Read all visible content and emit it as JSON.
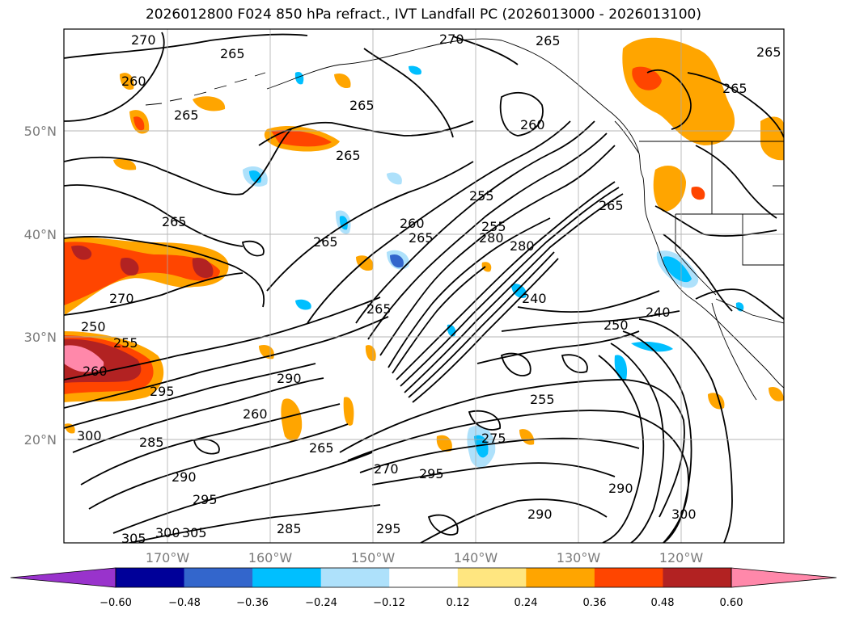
{
  "title": "2026012800 F024 850 hPa refract., IVT Landfall PC (2026013000 - 2026013100)",
  "map": {
    "lon_ticks": [
      "170°W",
      "160°W",
      "150°W",
      "140°W",
      "130°W",
      "120°W"
    ],
    "lat_ticks": [
      "50°N",
      "40°N",
      "30°N",
      "20°N"
    ],
    "contour_labels": [
      "270",
      "265",
      "260",
      "265",
      "265",
      "265",
      "265",
      "270",
      "265",
      "265",
      "260",
      "265",
      "255",
      "260",
      "280",
      "265",
      "265",
      "280",
      "270",
      "255",
      "240",
      "250",
      "240",
      "290",
      "295",
      "250",
      "265",
      "255",
      "260",
      "260",
      "255",
      "300",
      "285",
      "290",
      "295",
      "265",
      "275",
      "270",
      "295",
      "290",
      "290",
      "265",
      "305",
      "300",
      "305",
      "285",
      "295",
      "300"
    ]
  },
  "colorbar": {
    "tick_labels": [
      "−0.60",
      "−0.48",
      "−0.36",
      "−0.24",
      "−0.12",
      "0.12",
      "0.24",
      "0.36",
      "0.48",
      "0.60"
    ],
    "colors": [
      "#9933cc",
      "#000099",
      "#3366cc",
      "#00bfff",
      "#aee1fb",
      "#ffffff",
      "#ffe680",
      "#ffa500",
      "#ff4500",
      "#b22222",
      "#ff88aa"
    ]
  }
}
